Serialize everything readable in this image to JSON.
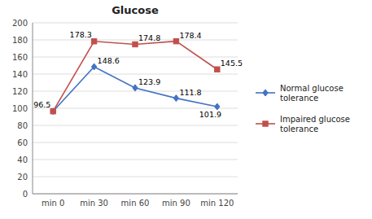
{
  "chart_data": {
    "type": "line",
    "title": "Glucose",
    "categories": [
      "min 0",
      "min 30",
      "min 60",
      "min 90",
      "min 120"
    ],
    "series": [
      {
        "name": "Normal glucose\ntolerance",
        "color": "#4472c4",
        "marker": "diamond",
        "values": [
          96.5,
          148.6,
          123.9,
          111.8,
          101.9
        ],
        "data_labels": true
      },
      {
        "name": "Impaired glucose\ntolerance",
        "color": "#c0504d",
        "marker": "square",
        "values": [
          96.5,
          178.3,
          174.8,
          178.4,
          145.5
        ],
        "value_labels": [
          null,
          "178.3",
          "174.8",
          "178.4",
          "145.5"
        ]
      }
    ],
    "ylim": [
      0,
      200
    ],
    "yticks": [
      0,
      20,
      40,
      60,
      80,
      100,
      120,
      140,
      160,
      180,
      200
    ],
    "grid": true,
    "legend": "right"
  }
}
